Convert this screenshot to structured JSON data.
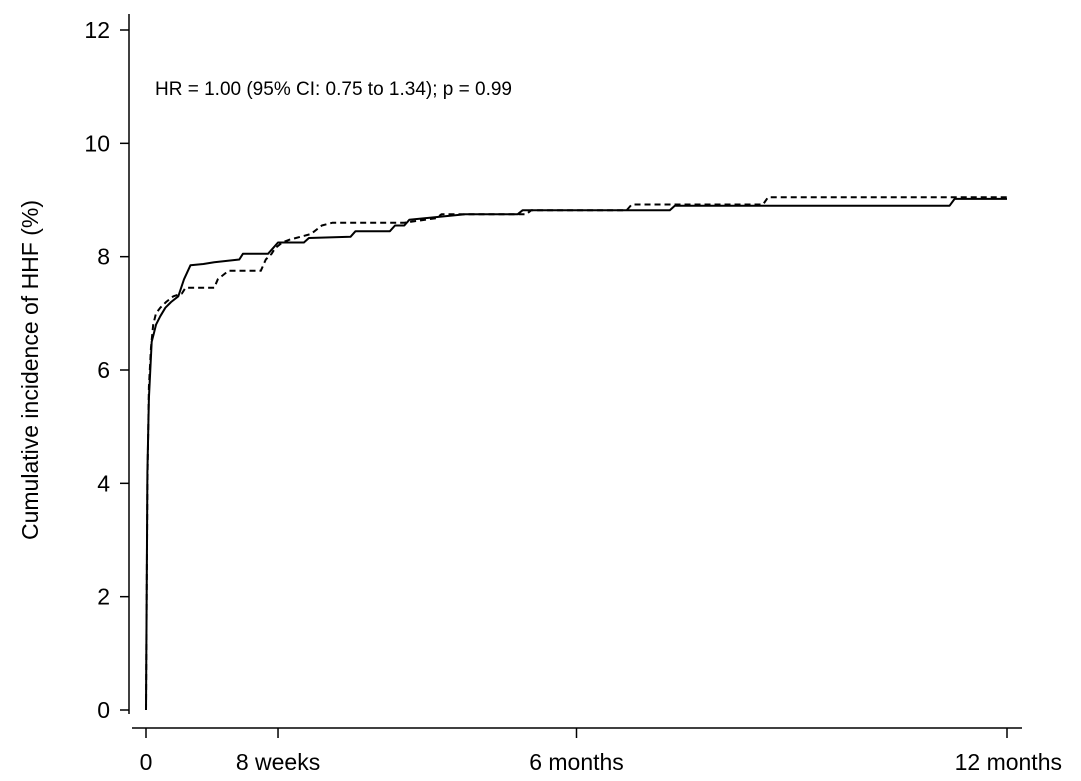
{
  "chart_data": {
    "type": "line",
    "title": "",
    "annotation": "HR = 1.00 (95% CI: 0.75 to 1.34); p = 0.99",
    "xlabel": "",
    "ylabel": "Cumulative incidence of HHF (%)",
    "xlim": [
      0,
      12
    ],
    "ylim": [
      0,
      12
    ],
    "grid": false,
    "x_ticks": [
      {
        "value": 0,
        "label": "0"
      },
      {
        "value": 1.84,
        "label": "8 weeks"
      },
      {
        "value": 6,
        "label": "6 months"
      },
      {
        "value": 12,
        "label": "12 months"
      }
    ],
    "y_ticks": [
      {
        "value": 0,
        "label": "0"
      },
      {
        "value": 2,
        "label": "2"
      },
      {
        "value": 4,
        "label": "4"
      },
      {
        "value": 6,
        "label": "6"
      },
      {
        "value": 8,
        "label": "8"
      },
      {
        "value": 10,
        "label": "10"
      },
      {
        "value": 12,
        "label": "12"
      }
    ],
    "series": [
      {
        "style": "solid",
        "color": "#000000",
        "points": [
          [
            0,
            0
          ],
          [
            0.02,
            4.2
          ],
          [
            0.04,
            5.5
          ],
          [
            0.06,
            6.0
          ],
          [
            0.08,
            6.5
          ],
          [
            0.11,
            6.65
          ],
          [
            0.14,
            6.8
          ],
          [
            0.2,
            6.95
          ],
          [
            0.27,
            7.1
          ],
          [
            0.35,
            7.2
          ],
          [
            0.45,
            7.3
          ],
          [
            0.53,
            7.6
          ],
          [
            0.62,
            7.85
          ],
          [
            0.8,
            7.87
          ],
          [
            0.95,
            7.9
          ],
          [
            1.3,
            7.95
          ],
          [
            1.35,
            8.05
          ],
          [
            1.7,
            8.05
          ],
          [
            1.77,
            8.15
          ],
          [
            1.84,
            8.25
          ],
          [
            2.2,
            8.25
          ],
          [
            2.27,
            8.33
          ],
          [
            2.85,
            8.35
          ],
          [
            2.92,
            8.45
          ],
          [
            3.4,
            8.45
          ],
          [
            3.47,
            8.55
          ],
          [
            3.6,
            8.55
          ],
          [
            3.67,
            8.65
          ],
          [
            4.45,
            8.75
          ],
          [
            5.18,
            8.75
          ],
          [
            5.25,
            8.82
          ],
          [
            6.4,
            8.82
          ],
          [
            7.3,
            8.82
          ],
          [
            7.37,
            8.9
          ],
          [
            9.2,
            8.9
          ],
          [
            11.2,
            8.9
          ],
          [
            11.27,
            9.02
          ],
          [
            12,
            9.02
          ]
        ]
      },
      {
        "style": "dashed",
        "color": "#000000",
        "points": [
          [
            0,
            0
          ],
          [
            0.02,
            4.0
          ],
          [
            0.04,
            5.7
          ],
          [
            0.07,
            6.4
          ],
          [
            0.1,
            6.8
          ],
          [
            0.14,
            7.0
          ],
          [
            0.2,
            7.1
          ],
          [
            0.28,
            7.2
          ],
          [
            0.38,
            7.3
          ],
          [
            0.5,
            7.35
          ],
          [
            0.55,
            7.45
          ],
          [
            0.95,
            7.45
          ],
          [
            1.0,
            7.6
          ],
          [
            1.15,
            7.75
          ],
          [
            1.6,
            7.75
          ],
          [
            1.67,
            7.95
          ],
          [
            1.75,
            8.05
          ],
          [
            1.8,
            8.15
          ],
          [
            1.9,
            8.25
          ],
          [
            2.0,
            8.3
          ],
          [
            2.3,
            8.4
          ],
          [
            2.45,
            8.55
          ],
          [
            2.6,
            8.6
          ],
          [
            3.6,
            8.6
          ],
          [
            4.05,
            8.68
          ],
          [
            4.12,
            8.75
          ],
          [
            5.3,
            8.75
          ],
          [
            5.37,
            8.82
          ],
          [
            6.7,
            8.82
          ],
          [
            6.77,
            8.92
          ],
          [
            8.6,
            8.92
          ],
          [
            8.67,
            9.05
          ],
          [
            12,
            9.05
          ]
        ]
      }
    ]
  }
}
